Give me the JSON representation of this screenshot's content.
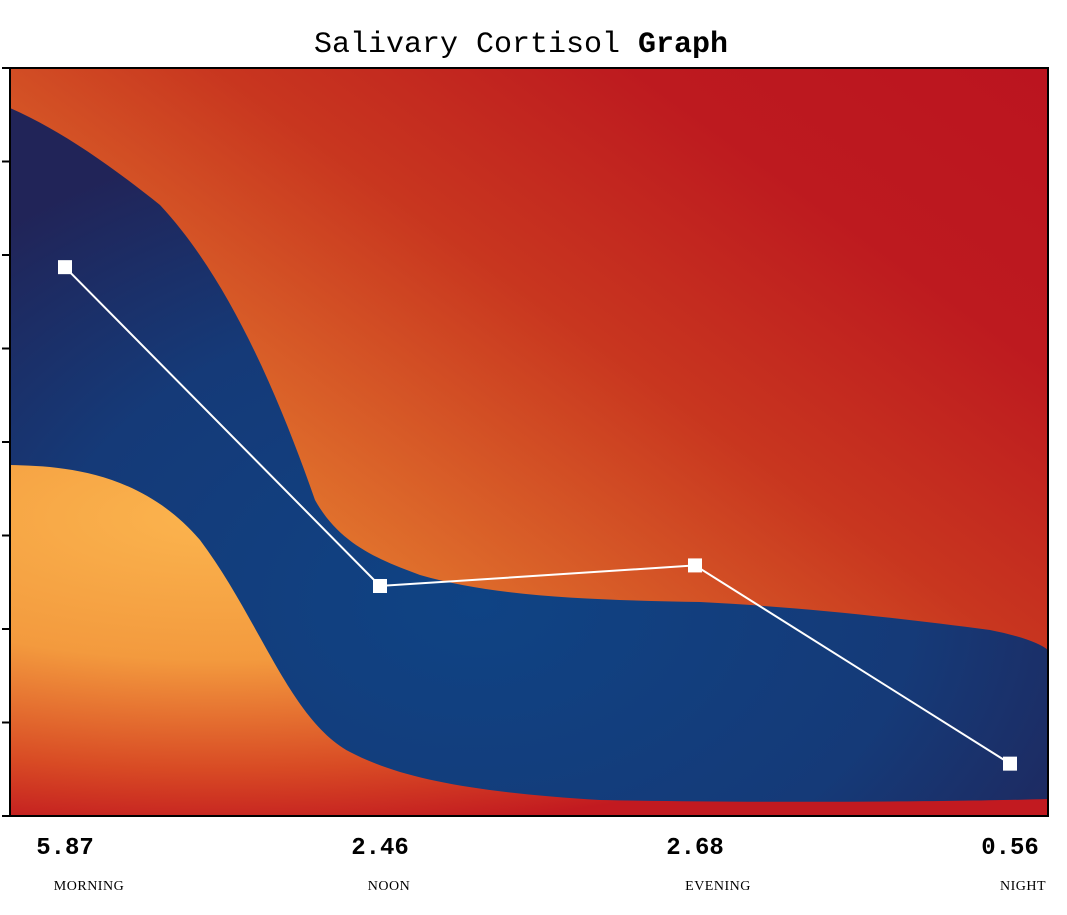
{
  "chart_data": {
    "type": "line",
    "title": "Salivary Cortisol",
    "title_emphasis": "Graph",
    "categories": [
      "MORNING",
      "NOON",
      "EVENING",
      "NIGHT"
    ],
    "values": [
      5.87,
      2.46,
      2.68,
      0.56
    ],
    "value_labels": [
      "5.87",
      "2.46",
      "2.68",
      "0.56"
    ],
    "ylim": [
      0,
      8
    ],
    "y_ticks": [
      0,
      1,
      2,
      3,
      4,
      5,
      6,
      7,
      8
    ],
    "grid": false,
    "legend": "none",
    "series": [
      {
        "values": [
          5.87,
          2.46,
          2.68,
          0.56
        ],
        "color": "#ffffff",
        "marker": "square"
      }
    ],
    "background_bands": {
      "high_zone_color": "#c0141f",
      "normal_zone_color": "#1e3a7a",
      "low_zone_color": "#f4a640"
    }
  }
}
